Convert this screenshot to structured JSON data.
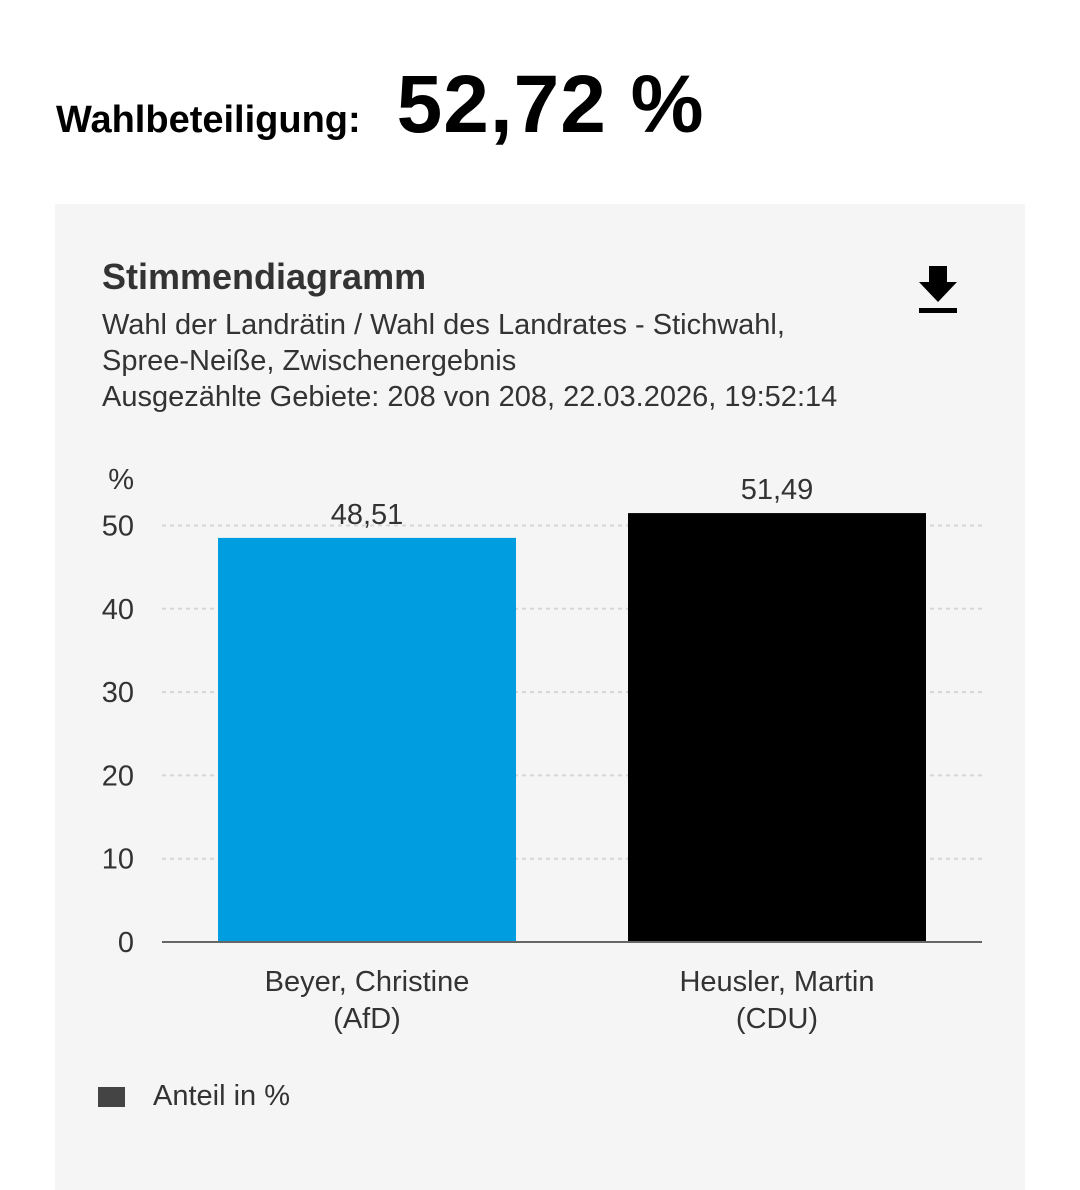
{
  "turnout": {
    "label": "Wahlbeteiligung:",
    "value": "52,72 %"
  },
  "card": {
    "title": "Stimmendiagramm",
    "subtitle_lines": [
      "Wahl der Landrätin / Wahl des Landrates - Stichwahl,",
      "Spree-Neiße, Zwischenergebnis",
      "Ausgezählte Gebiete: 208 von 208, 22.03.2026, 19:52:14"
    ],
    "download_icon": "download-icon"
  },
  "legend": {
    "label": "Anteil in %",
    "color": "#444444"
  },
  "chart_data": {
    "type": "bar",
    "ylabel": "%",
    "ylim": [
      0,
      52
    ],
    "yticks": [
      0,
      10,
      20,
      30,
      40,
      50
    ],
    "grid": true,
    "legend_position": "bottom-left",
    "categories": [
      [
        "Beyer, Christine",
        "(AfD)"
      ],
      [
        "Heusler, Martin",
        "(CDU)"
      ]
    ],
    "values": [
      48.51,
      51.49
    ],
    "value_labels": [
      "48,51",
      "51,49"
    ],
    "colors": [
      "#009ee0",
      "#000000"
    ]
  }
}
